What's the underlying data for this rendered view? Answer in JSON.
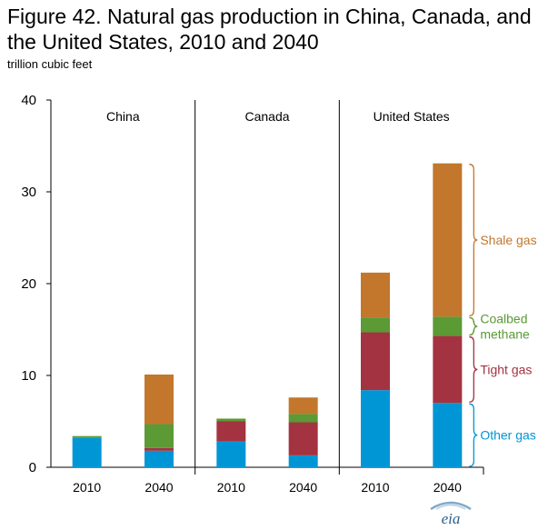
{
  "figure": {
    "title": "Figure 42. Natural gas production in China, Canada, and the United States, 2010 and 2040",
    "units": "trillion  cubic feet",
    "logo": "eia"
  },
  "chart_data": {
    "type": "bar",
    "stacked": true,
    "title": "Figure 42. Natural gas production in China, Canada, and the United States, 2010 and 2040",
    "ylabel": "trillion  cubic feet",
    "ylim": [
      0,
      40
    ],
    "yticks": [
      0,
      10,
      20,
      30,
      40
    ],
    "grid": false,
    "groups": [
      {
        "name": "China",
        "years": [
          "2010",
          "2040"
        ]
      },
      {
        "name": "Canada",
        "years": [
          "2010",
          "2040"
        ]
      },
      {
        "name": "United States",
        "years": [
          "2010",
          "2040"
        ]
      }
    ],
    "categories": [
      "China 2010",
      "China 2040",
      "Canada 2010",
      "Canada 2040",
      "United States 2010",
      "United States 2040"
    ],
    "x_tick_labels": [
      "2010",
      "2040",
      "2010",
      "2040",
      "2010",
      "2040"
    ],
    "series": [
      {
        "name": "Other gas",
        "color": "#0096d6",
        "values": [
          3.2,
          1.8,
          2.8,
          1.3,
          8.4,
          7.0
        ]
      },
      {
        "name": "Tight gas",
        "color": "#a33340",
        "values": [
          0.0,
          0.3,
          2.2,
          3.6,
          6.3,
          7.3
        ]
      },
      {
        "name": "Coalbed methane",
        "color": "#5b9a35",
        "values": [
          0.2,
          2.6,
          0.3,
          0.9,
          1.6,
          2.1
        ]
      },
      {
        "name": "Shale gas",
        "color": "#c2772c",
        "values": [
          0.0,
          5.4,
          0.0,
          1.8,
          4.9,
          16.7
        ]
      }
    ],
    "legend_placement": "right (brace labels beside United States 2040 bar)",
    "brace_labels": [
      "Shale gas",
      "Coalbed methane",
      "Tight gas",
      "Other gas"
    ]
  }
}
